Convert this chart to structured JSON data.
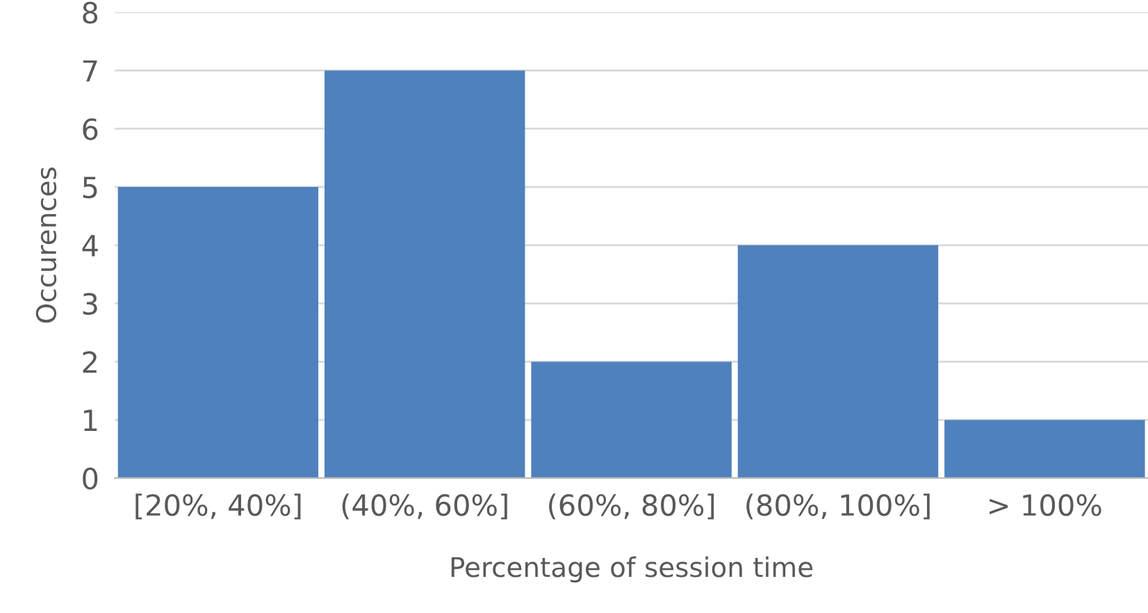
{
  "chart_data": {
    "type": "bar",
    "xlabel": "Percentage of session time",
    "ylabel": "Occurences",
    "categories": [
      "[20%, 40%]",
      "(40%, 60%]",
      "(60%, 80%]",
      "(80%, 100%]",
      "> 100%"
    ],
    "values": [
      5,
      7,
      2,
      4,
      1
    ],
    "color": "#4f81bd",
    "ylim": [
      0,
      8
    ],
    "yticks": [
      0,
      1,
      2,
      3,
      4,
      5,
      6,
      7,
      8
    ],
    "grid": "y",
    "legend": false
  }
}
